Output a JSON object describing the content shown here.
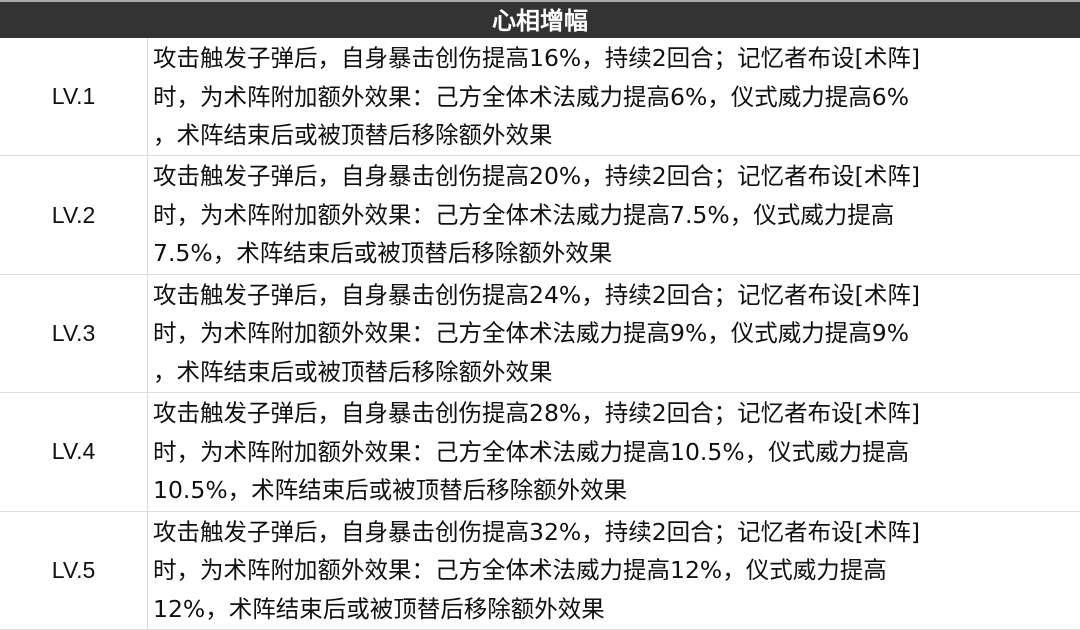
{
  "title": "心相增幅",
  "rows": [
    {
      "level": "LV.1",
      "lines": [
        "攻击触发子弹后，自身暴击创伤提高16%，持续2回合；记忆者布设[术阵]",
        "时，为术阵附加额外效果：己方全体术法威力提高6%，仪式威力提高6%",
        "，术阵结束后或被顶替后移除额外效果"
      ]
    },
    {
      "level": "LV.2",
      "lines": [
        "攻击触发子弹后，自身暴击创伤提高20%，持续2回合；记忆者布设[术阵]",
        "时，为术阵附加额外效果：己方全体术法威力提高7.5%，仪式威力提高",
        "7.5%，术阵结束后或被顶替后移除额外效果"
      ]
    },
    {
      "level": "LV.3",
      "lines": [
        "攻击触发子弹后，自身暴击创伤提高24%，持续2回合；记忆者布设[术阵]",
        "时，为术阵附加额外效果：己方全体术法威力提高9%，仪式威力提高9%",
        "，术阵结束后或被顶替后移除额外效果"
      ]
    },
    {
      "level": "LV.4",
      "lines": [
        "攻击触发子弹后，自身暴击创伤提高28%，持续2回合；记忆者布设[术阵]",
        "时，为术阵附加额外效果：己方全体术法威力提高10.5%，仪式威力提高",
        "10.5%，术阵结束后或被顶替后移除额外效果"
      ]
    },
    {
      "level": "LV.5",
      "lines": [
        "攻击触发子弹后，自身暴击创伤提高32%，持续2回合；记忆者布设[术阵]",
        "时，为术阵附加额外效果：己方全体术法威力提高12%，仪式威力提高",
        "12%，术阵结束后或被顶替后移除额外效果"
      ]
    }
  ]
}
